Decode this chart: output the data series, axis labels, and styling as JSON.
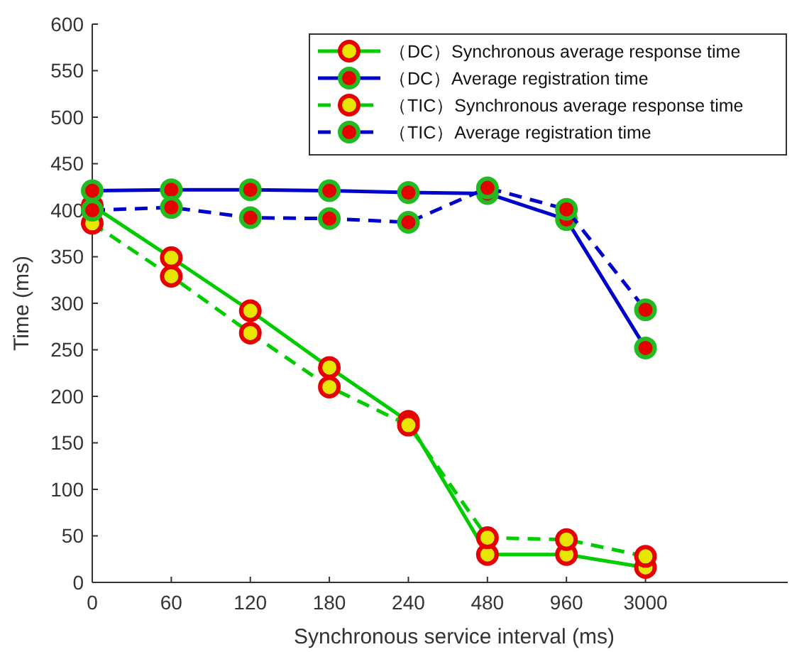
{
  "chart_data": {
    "type": "line",
    "xlabel": "Synchronous service interval (ms)",
    "ylabel": "Time (ms)",
    "categories": [
      "0",
      "60",
      "120",
      "180",
      "240",
      "480",
      "960",
      "3000"
    ],
    "ylim": [
      0,
      600
    ],
    "yticks": [
      0,
      50,
      100,
      150,
      200,
      250,
      300,
      350,
      400,
      450,
      500,
      550,
      600
    ],
    "grid": false,
    "legend": "top right",
    "marker": "circle",
    "series": [
      {
        "name": "（DC）Synchronous average response time",
        "color": "#00cc00",
        "line_style": "solid",
        "values": [
          405,
          349,
          292,
          231,
          173,
          30,
          30,
          16
        ]
      },
      {
        "name": "（DC）Average registration time",
        "color": "#0000cc",
        "line_style": "solid",
        "values": [
          421,
          422,
          422,
          421,
          419,
          418,
          390,
          252
        ]
      },
      {
        "name": "（TIC）Synchronous average response time",
        "color": "#00cc00",
        "line_style": "dashed",
        "values": [
          386,
          329,
          268,
          210,
          169,
          48,
          46,
          28
        ]
      },
      {
        "name": "（TIC）Average registration time",
        "color": "#0000cc",
        "line_style": "dashed",
        "values": [
          400,
          403,
          392,
          391,
          387,
          424,
          401,
          293
        ]
      }
    ]
  }
}
